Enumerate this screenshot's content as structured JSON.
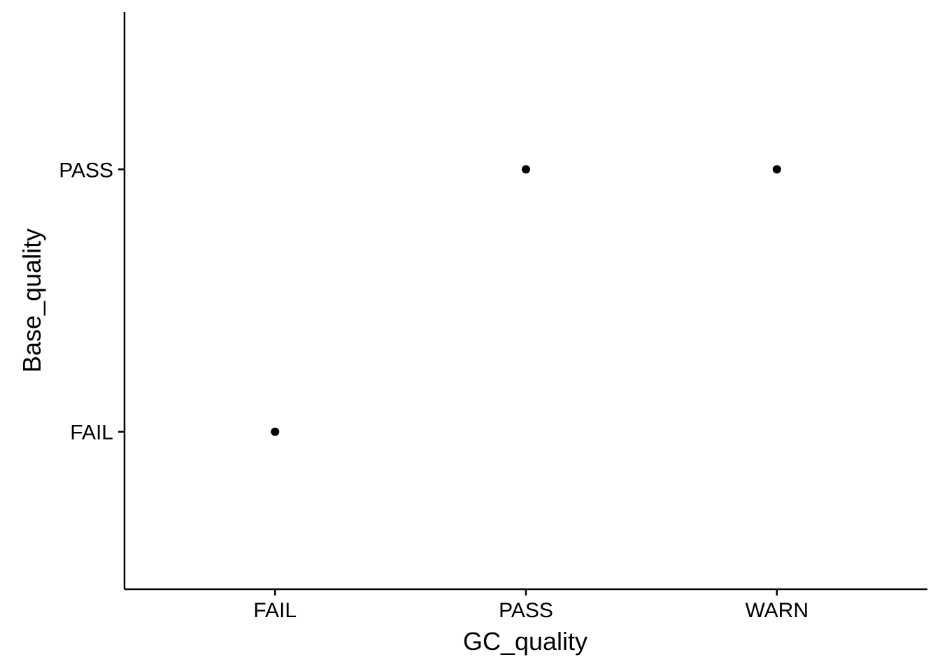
{
  "chart_data": {
    "type": "scatter",
    "xlabel": "GC_quality",
    "ylabel": "Base_quality",
    "x_categories": [
      "FAIL",
      "PASS",
      "WARN"
    ],
    "y_categories": [
      "FAIL",
      "PASS"
    ],
    "points": [
      {
        "x": "FAIL",
        "y": "FAIL"
      },
      {
        "x": "PASS",
        "y": "PASS"
      },
      {
        "x": "WARN",
        "y": "PASS"
      }
    ],
    "grid": false,
    "legend": "none",
    "colors": {
      "point": "#000000",
      "axis": "#000000",
      "background": "#ffffff"
    }
  }
}
